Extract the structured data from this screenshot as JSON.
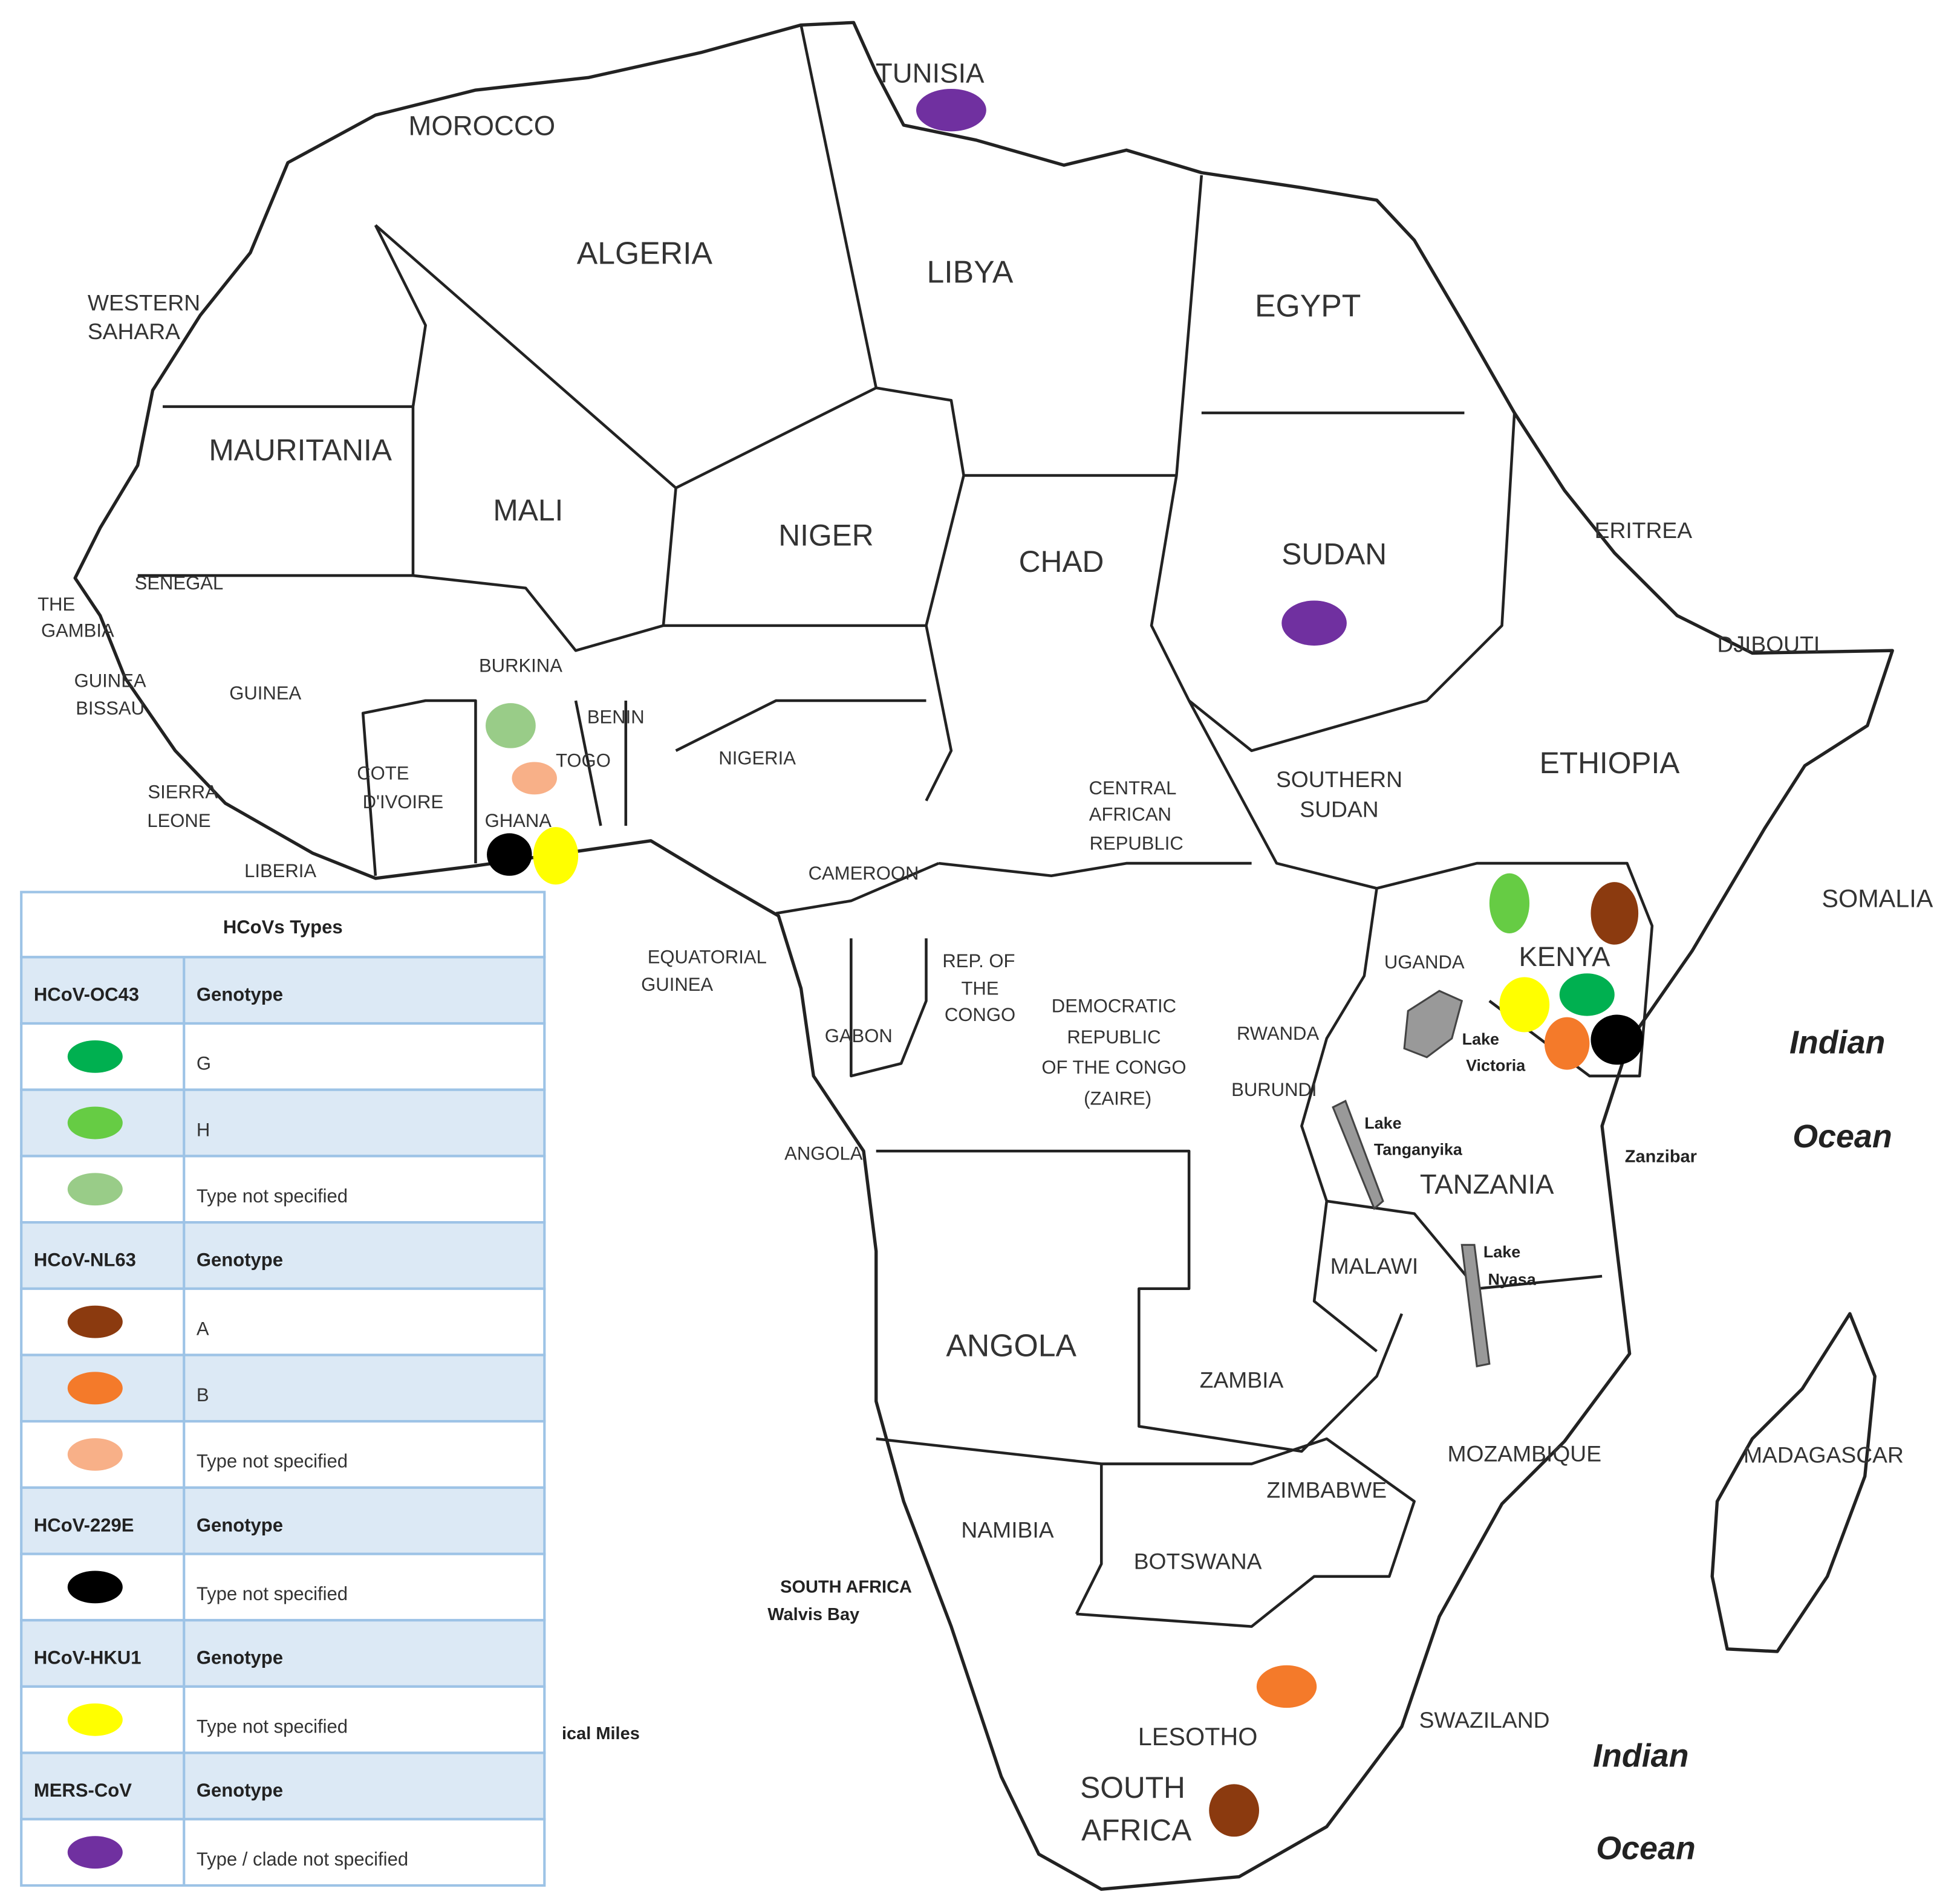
{
  "map": {
    "labels": [
      "TUNISIA",
      "MOROCCO",
      "ALGERIA",
      "LIBYA",
      "EGYPT",
      [
        "WESTERN",
        "SAHARA"
      ],
      "MAURITANIA",
      "MALI",
      "NIGER",
      "CHAD",
      "SUDAN",
      "ERITREA",
      "DJIBOUTI",
      "SENEGAL",
      [
        "THE",
        "GAMBIA"
      ],
      [
        "GUINEA",
        "BISSAU"
      ],
      "GUINEA",
      "BURKINA",
      "BENIN",
      "TOGO",
      "NIGERIA",
      [
        "COTE",
        "D'IVOIRE"
      ],
      [
        "SIERRA",
        "LEONE"
      ],
      "GHANA",
      "LIBERIA",
      "ETHIOPIA",
      [
        "SOUTHERN",
        "SUDAN"
      ],
      [
        "CENTRAL",
        "AFRICAN",
        "REPUBLIC"
      ],
      "CAMEROON",
      "SOMALIA",
      [
        "EQUATORIAL",
        "GUINEA"
      ],
      [
        "REP. OF",
        "THE",
        "CONGO"
      ],
      "UGANDA",
      "KENYA",
      [
        "DEMOCRATIC",
        "REPUBLIC",
        "OF THE CONGO",
        "(ZAIRE)"
      ],
      "RWANDA",
      [
        "Lake",
        "Victoria"
      ],
      "BURUNDI",
      "GABON",
      "Indian",
      "Ocean",
      [
        "Lake",
        "Tanganyika"
      ],
      "Zanzibar",
      "ANGOLA",
      "TANZANIA",
      [
        "Lake",
        "Nyasa"
      ],
      "MALAWI",
      "ANGOLA",
      "ZAMBIA",
      "MOZAMBIQUE",
      "MADAGASCAR",
      "ZIMBABWE",
      "NAMIBIA",
      "BOTSWANA",
      [
        "SOUTH AFRICA",
        "Walvis Bay"
      ],
      "SWAZILAND",
      "LESOTHO",
      [
        "SOUTH",
        "AFRICA"
      ],
      "Indian",
      "Ocean",
      "ical Miles"
    ]
  },
  "legend": {
    "title": "HCoVs Types",
    "groups": [
      {
        "virus": "HCoV-OC43",
        "header": "Genotype",
        "rows": [
          {
            "label": "G",
            "color": "#00b050"
          },
          {
            "label": "H",
            "color": "#66cc44"
          },
          {
            "label": "Type not specified",
            "color": "#99cc88"
          }
        ]
      },
      {
        "virus": "HCoV-NL63",
        "header": "Genotype",
        "rows": [
          {
            "label": "A",
            "color": "#8b3a0f"
          },
          {
            "label": "B",
            "color": "#f47a2a"
          },
          {
            "label": "Type not specified",
            "color": "#f8b088"
          }
        ]
      },
      {
        "virus": "HCoV-229E",
        "header": "Genotype",
        "rows": [
          {
            "label": "Type not specified",
            "color": "#000000"
          }
        ]
      },
      {
        "virus": "HCoV-HKU1",
        "header": "Genotype",
        "rows": [
          {
            "label": "Type not specified",
            "color": "#ffff00"
          }
        ]
      },
      {
        "virus": "MERS-CoV",
        "header": "Genotype",
        "rows": [
          {
            "label": "Type / clade not specified",
            "color": "#7030a0"
          }
        ]
      }
    ]
  }
}
